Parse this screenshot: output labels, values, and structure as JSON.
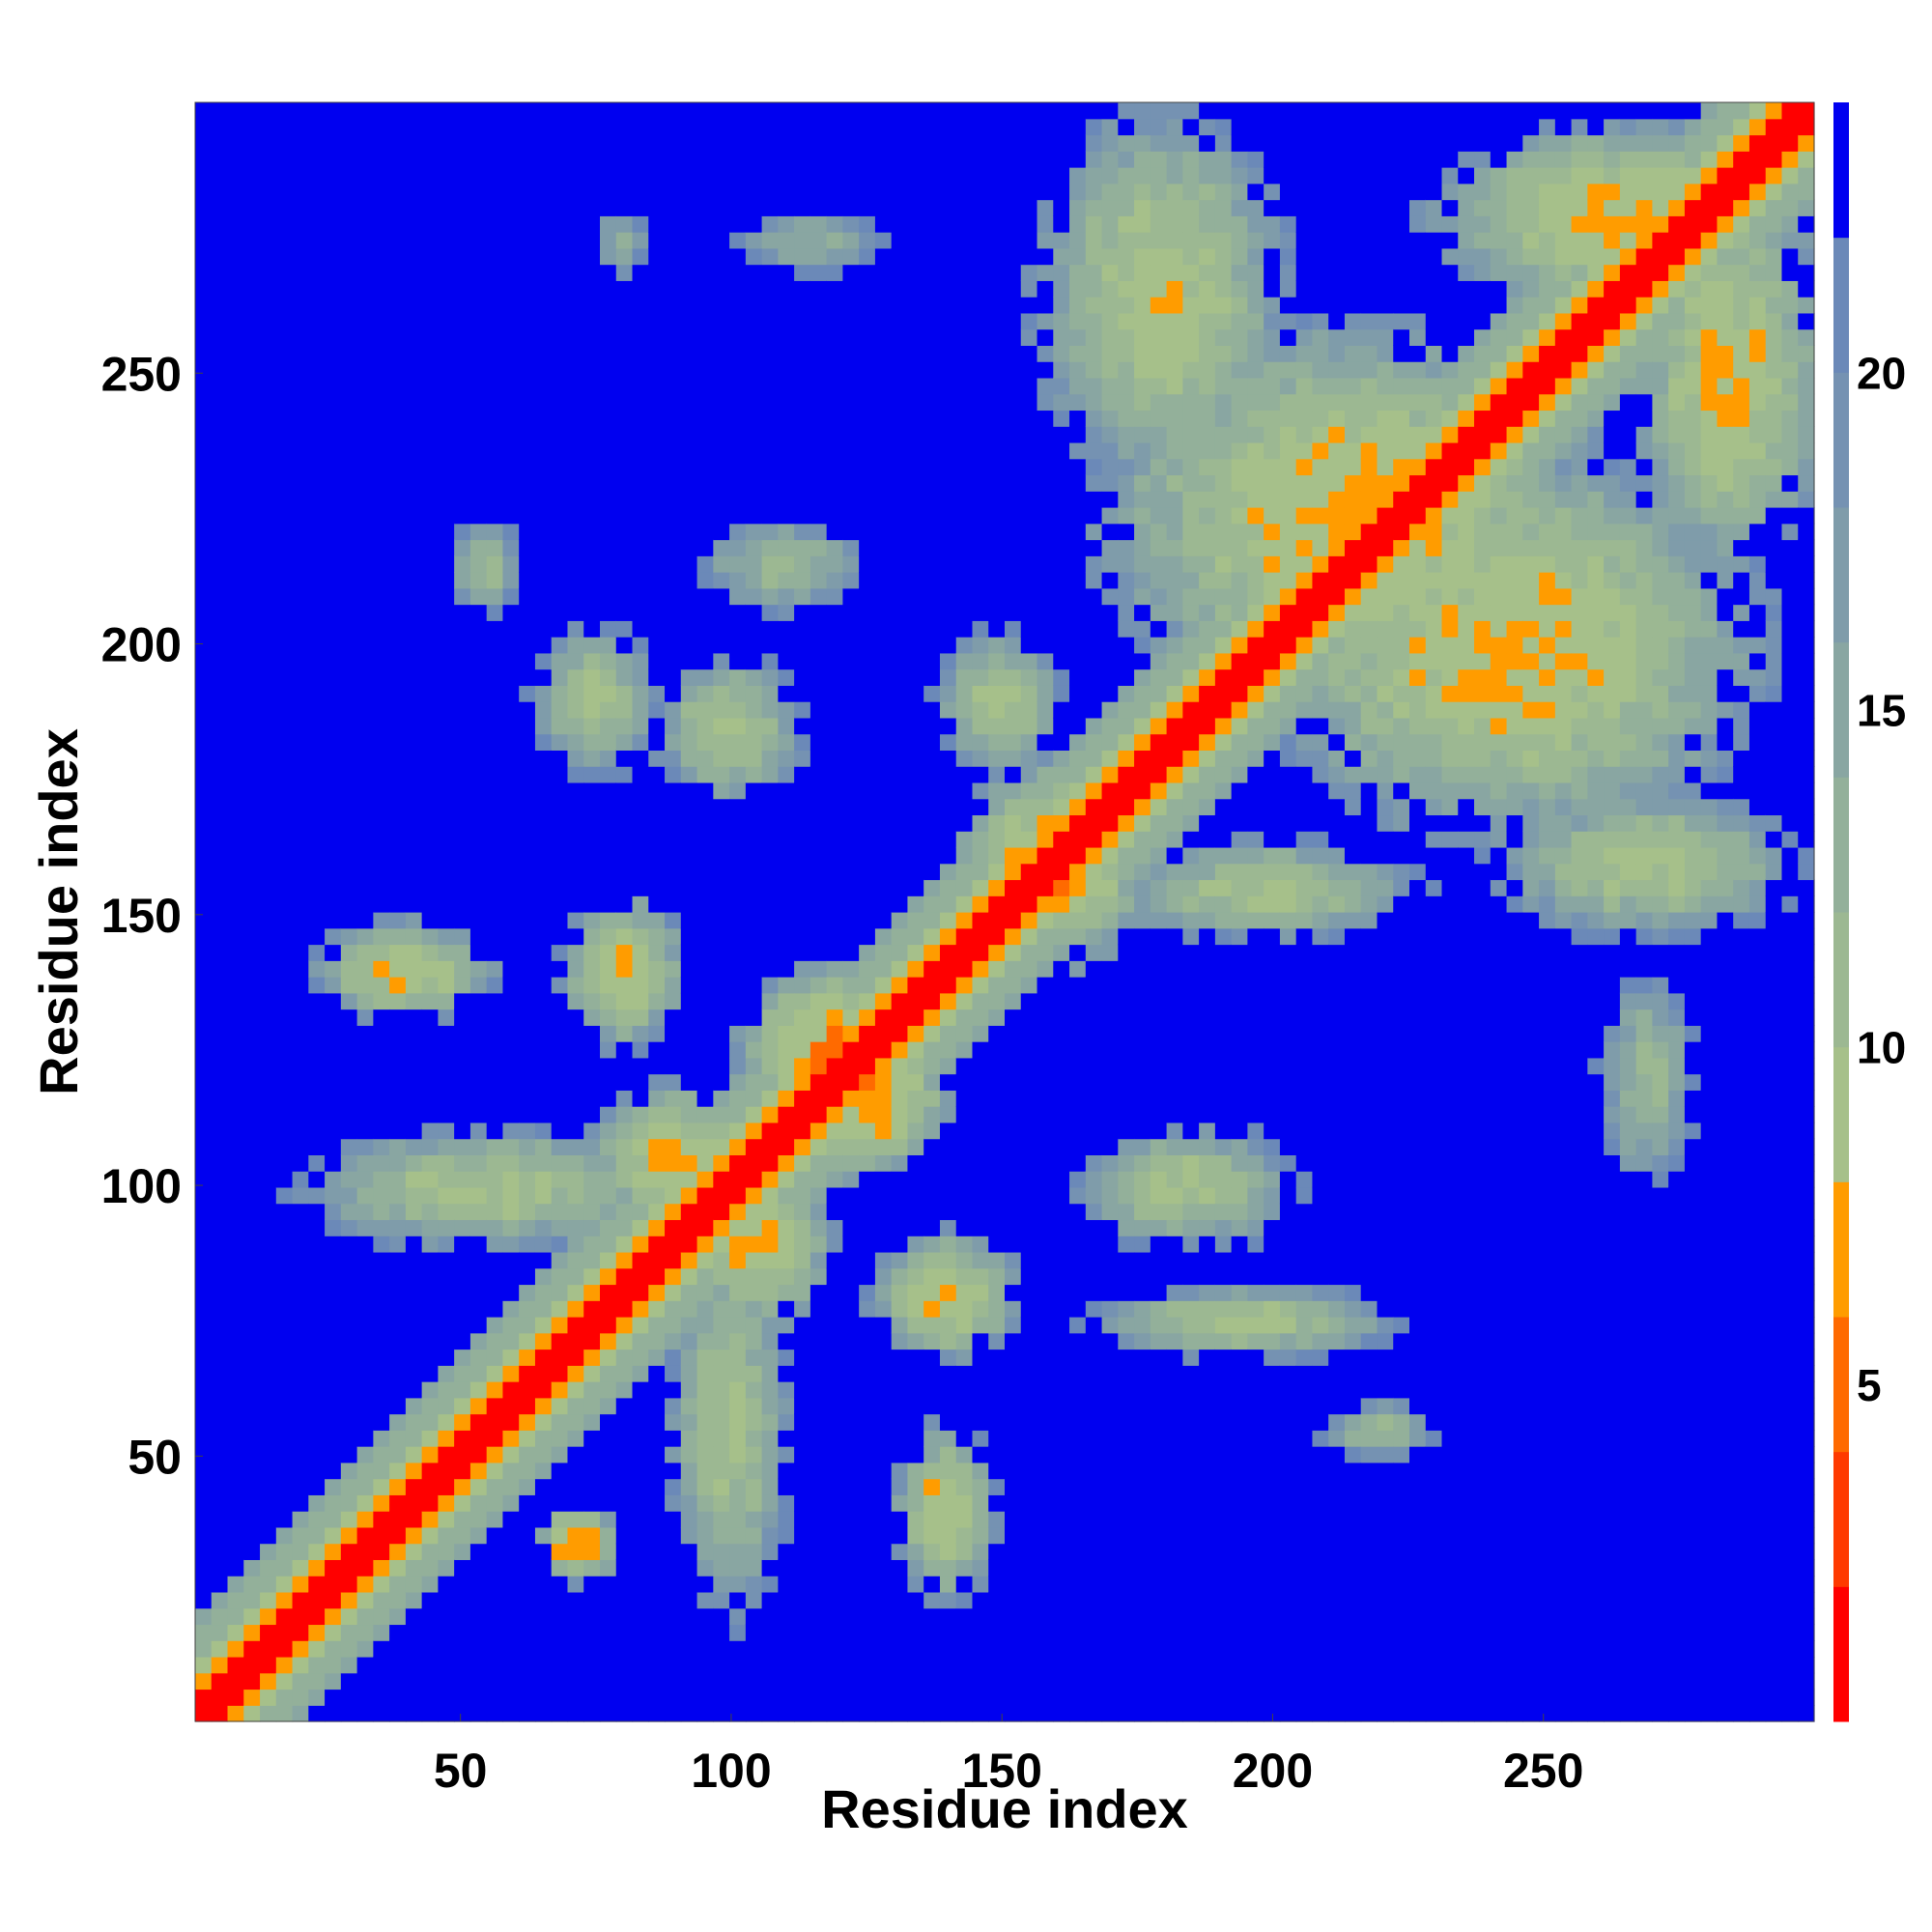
{
  "chart_data": {
    "type": "heatmap",
    "title": "",
    "xlabel": "Residue index",
    "ylabel": "Residue index",
    "xlim": [
      1,
      300
    ],
    "ylim": [
      1,
      300
    ],
    "x_ticks": [
      50,
      100,
      150,
      200,
      250
    ],
    "y_ticks": [
      50,
      100,
      150,
      200,
      250
    ],
    "colorbar": {
      "range": [
        0,
        24
      ],
      "ticks": [
        5,
        10,
        15,
        20
      ],
      "bands": [
        {
          "from": 0,
          "to": 2,
          "color": "#ff0000"
        },
        {
          "from": 2,
          "to": 4,
          "color": "#ff3a00"
        },
        {
          "from": 4,
          "to": 6,
          "color": "#ff6a00"
        },
        {
          "from": 6,
          "to": 8,
          "color": "#ff9c00"
        },
        {
          "from": 8,
          "to": 10,
          "color": "#a6c08a"
        },
        {
          "from": 10,
          "to": 12,
          "color": "#9cb892"
        },
        {
          "from": 12,
          "to": 14,
          "color": "#93b09a"
        },
        {
          "from": 14,
          "to": 16,
          "color": "#89a6a2"
        },
        {
          "from": 16,
          "to": 18,
          "color": "#7f9caa"
        },
        {
          "from": 18,
          "to": 20,
          "color": "#7592b2"
        },
        {
          "from": 20,
          "to": 22,
          "color": "#6b89b8"
        },
        {
          "from": 22,
          "to": 24,
          "color": "#0000f0"
        }
      ]
    },
    "background_value": 24,
    "diagonal": {
      "half_width": 1.6,
      "contact_width": 5
    },
    "contact_regions": [
      {
        "x": 72,
        "y": 34,
        "rx": 6,
        "ry": 6,
        "min": 4
      },
      {
        "x": 55,
        "y": 100,
        "rx": 30,
        "ry": 10,
        "min": 8
      },
      {
        "x": 100,
        "y": 55,
        "rx": 10,
        "ry": 30,
        "min": 8
      },
      {
        "x": 40,
        "y": 140,
        "rx": 14,
        "ry": 8,
        "min": 6
      },
      {
        "x": 140,
        "y": 40,
        "rx": 8,
        "ry": 14,
        "min": 6
      },
      {
        "x": 80,
        "y": 140,
        "rx": 10,
        "ry": 12,
        "min": 6
      },
      {
        "x": 140,
        "y": 80,
        "rx": 12,
        "ry": 10,
        "min": 6
      },
      {
        "x": 105,
        "y": 90,
        "rx": 12,
        "ry": 14,
        "min": 6
      },
      {
        "x": 90,
        "y": 105,
        "rx": 14,
        "ry": 12,
        "min": 6
      },
      {
        "x": 125,
        "y": 118,
        "rx": 14,
        "ry": 14,
        "min": 5
      },
      {
        "x": 118,
        "y": 125,
        "rx": 14,
        "ry": 14,
        "min": 5
      },
      {
        "x": 160,
        "y": 160,
        "rx": 16,
        "ry": 16,
        "min": 5
      },
      {
        "x": 195,
        "y": 75,
        "rx": 25,
        "ry": 6,
        "min": 8
      },
      {
        "x": 185,
        "y": 100,
        "rx": 18,
        "ry": 10,
        "min": 8
      },
      {
        "x": 220,
        "y": 55,
        "rx": 10,
        "ry": 5,
        "min": 10
      },
      {
        "x": 200,
        "y": 155,
        "rx": 25,
        "ry": 8,
        "min": 8
      },
      {
        "x": 270,
        "y": 160,
        "rx": 25,
        "ry": 12,
        "min": 8
      },
      {
        "x": 270,
        "y": 120,
        "rx": 8,
        "ry": 18,
        "min": 10
      },
      {
        "x": 215,
        "y": 225,
        "rx": 40,
        "ry": 30,
        "min": 6
      },
      {
        "x": 245,
        "y": 200,
        "rx": 40,
        "ry": 30,
        "min": 6
      },
      {
        "x": 180,
        "y": 265,
        "rx": 20,
        "ry": 30,
        "min": 7
      },
      {
        "x": 265,
        "y": 280,
        "rx": 30,
        "ry": 15,
        "min": 6
      },
      {
        "x": 285,
        "y": 250,
        "rx": 15,
        "ry": 30,
        "min": 6
      },
      {
        "x": 55,
        "y": 215,
        "rx": 6,
        "ry": 8,
        "min": 10
      },
      {
        "x": 110,
        "y": 215,
        "rx": 14,
        "ry": 8,
        "min": 10
      },
      {
        "x": 75,
        "y": 190,
        "rx": 10,
        "ry": 12,
        "min": 8
      },
      {
        "x": 100,
        "y": 185,
        "rx": 12,
        "ry": 12,
        "min": 8
      },
      {
        "x": 150,
        "y": 190,
        "rx": 10,
        "ry": 12,
        "min": 8
      },
      {
        "x": 115,
        "y": 275,
        "rx": 14,
        "ry": 6,
        "min": 12
      },
      {
        "x": 80,
        "y": 275,
        "rx": 5,
        "ry": 6,
        "min": 12
      }
    ]
  }
}
